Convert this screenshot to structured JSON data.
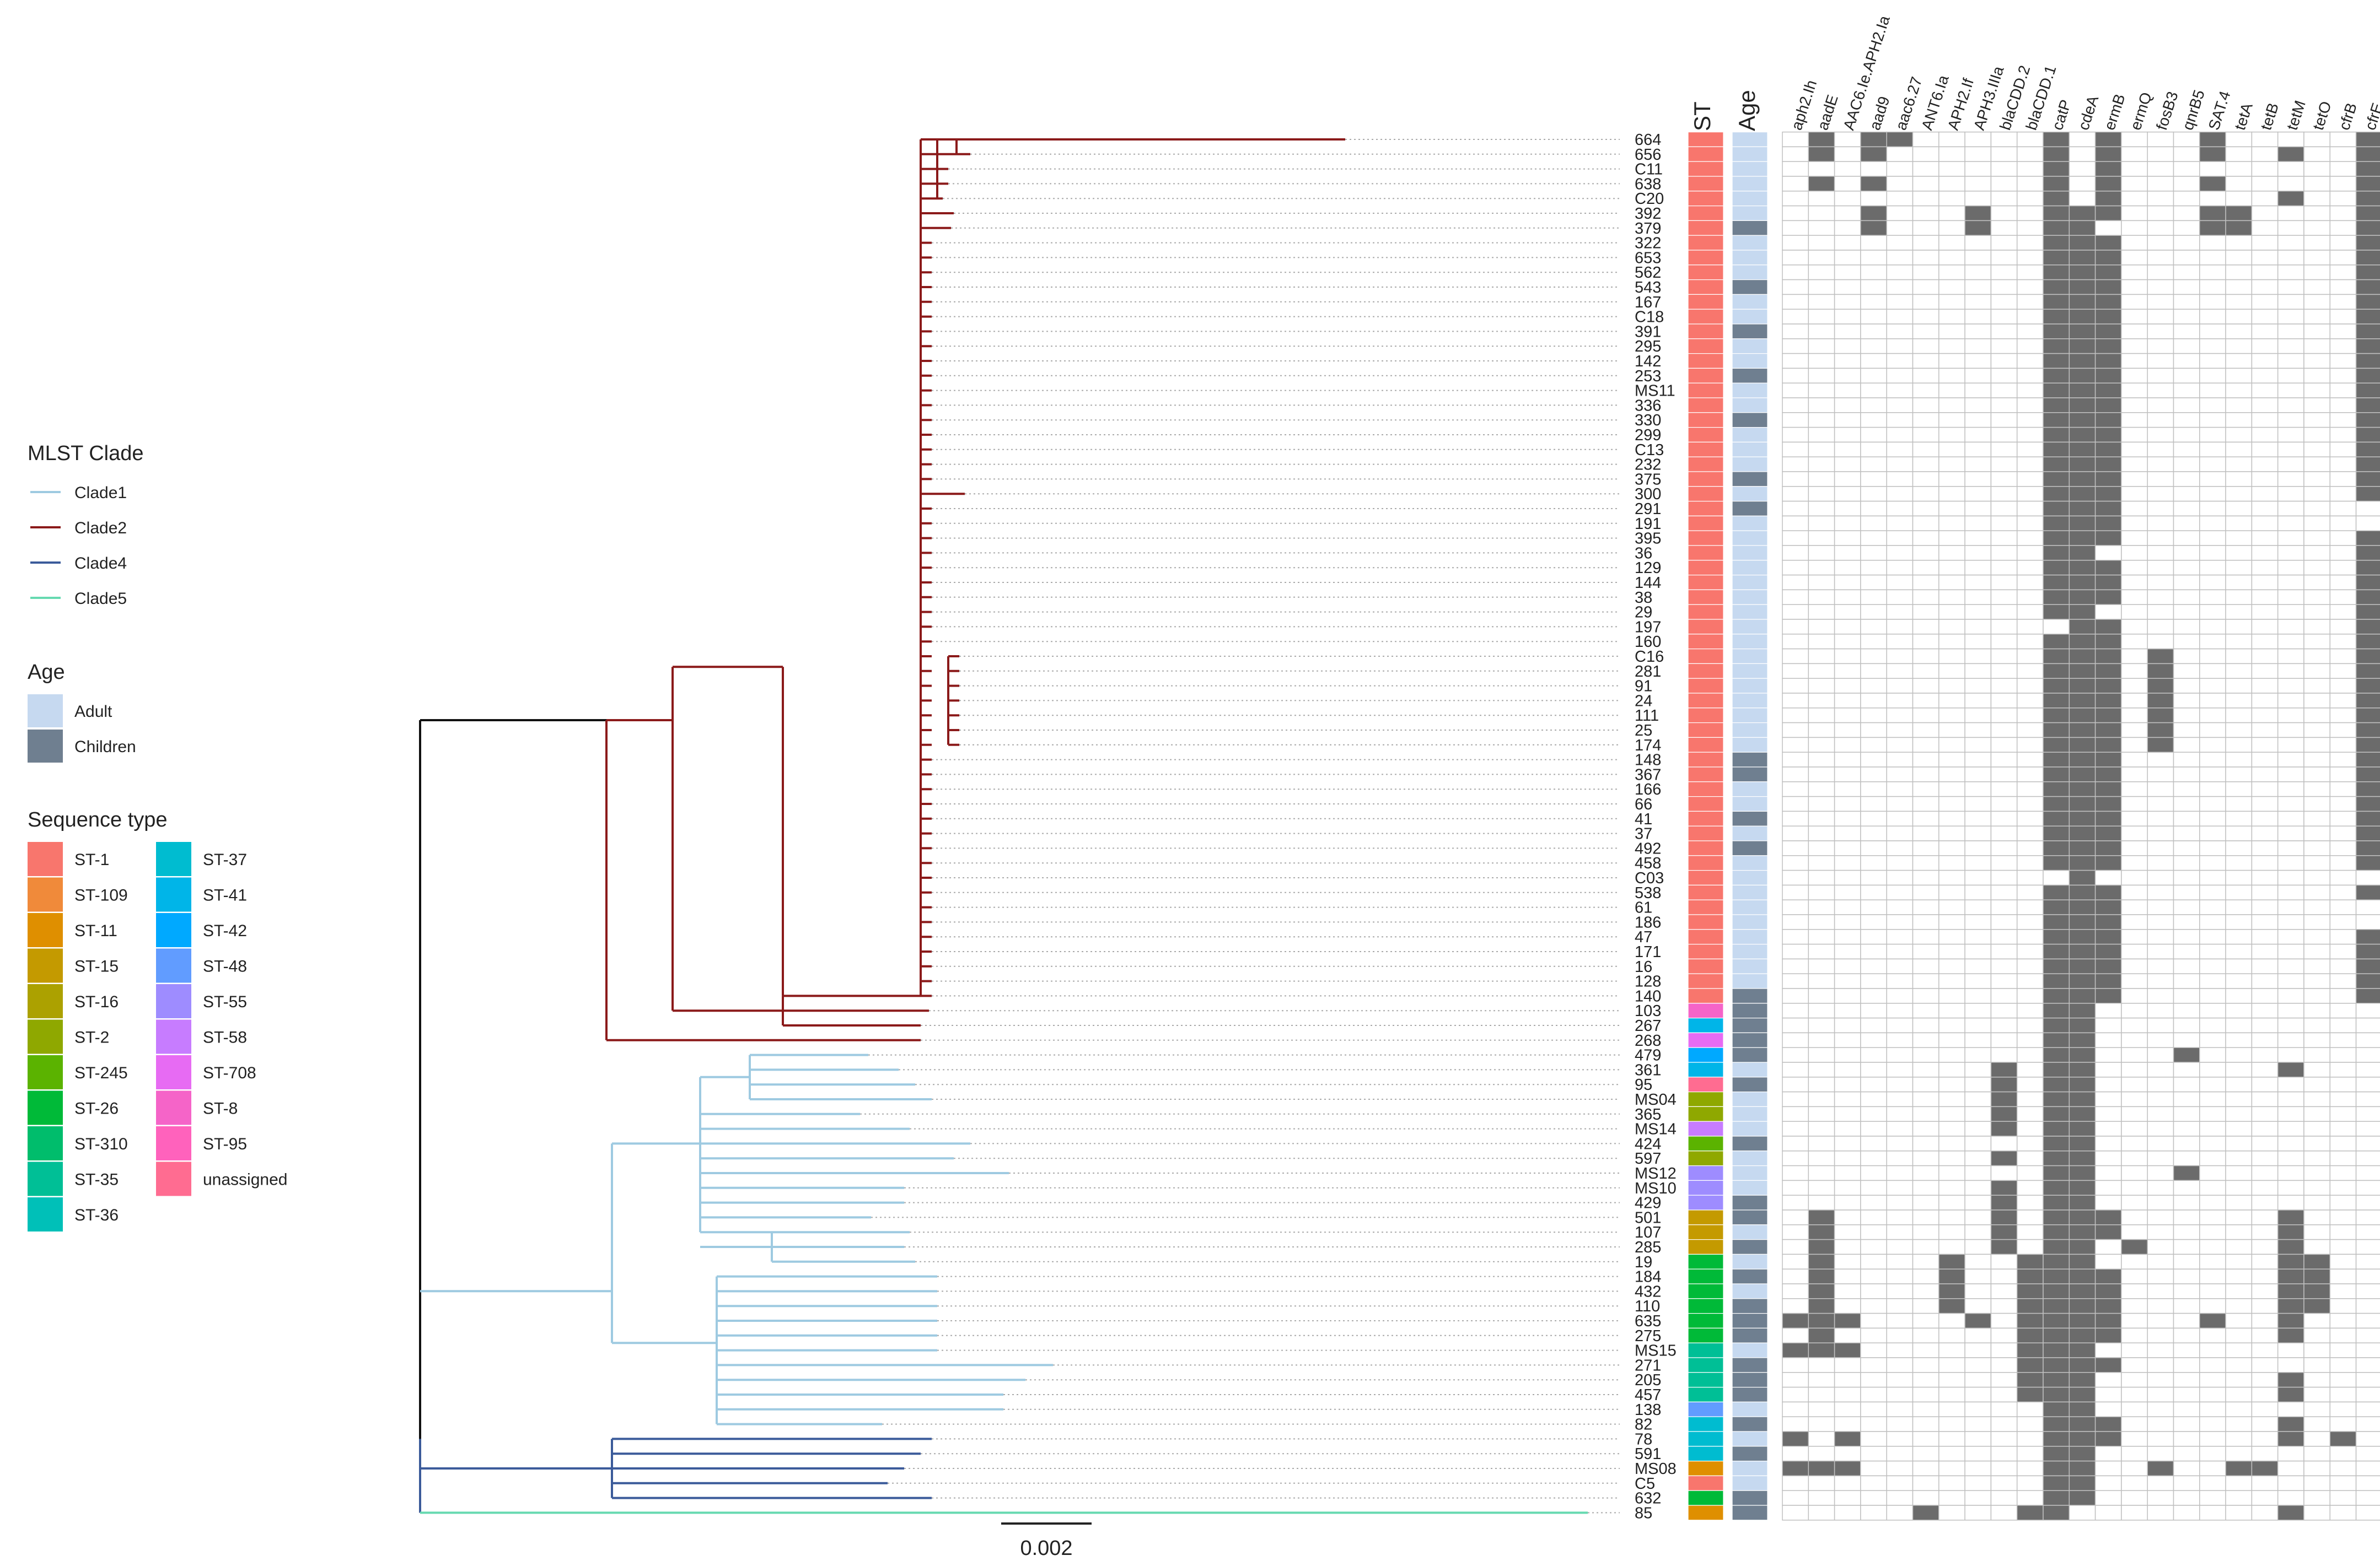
{
  "legend": {
    "clade_title": "MLST Clade",
    "clades": [
      {
        "label": "Clade1",
        "color": "#9ecae1"
      },
      {
        "label": "Clade2",
        "color": "#8b1a1a"
      },
      {
        "label": "Clade4",
        "color": "#3b5b9a"
      },
      {
        "label": "Clade5",
        "color": "#66d9b0"
      }
    ],
    "age_title": "Age",
    "ages": [
      {
        "label": "Adult",
        "color": "#c6d9f0"
      },
      {
        "label": "Children",
        "color": "#6f7f90"
      }
    ],
    "st_title": "Sequence type",
    "sts": [
      {
        "label": "ST-1",
        "color": "#f8766d"
      },
      {
        "label": "ST-109",
        "color": "#f08a3a"
      },
      {
        "label": "ST-11",
        "color": "#df8f00"
      },
      {
        "label": "ST-15",
        "color": "#c49a00"
      },
      {
        "label": "ST-16",
        "color": "#aca100"
      },
      {
        "label": "ST-2",
        "color": "#8fa800"
      },
      {
        "label": "ST-245",
        "color": "#5bb300"
      },
      {
        "label": "ST-26",
        "color": "#00ba38"
      },
      {
        "label": "ST-310",
        "color": "#00bd6c"
      },
      {
        "label": "ST-35",
        "color": "#00bf96"
      },
      {
        "label": "ST-36",
        "color": "#00c0b8"
      },
      {
        "label": "ST-37",
        "color": "#00bcd0"
      },
      {
        "label": "ST-41",
        "color": "#00b5e8"
      },
      {
        "label": "ST-42",
        "color": "#00a9ff"
      },
      {
        "label": "ST-48",
        "color": "#619cff"
      },
      {
        "label": "ST-55",
        "color": "#9e8cff"
      },
      {
        "label": "ST-58",
        "color": "#c77cff"
      },
      {
        "label": "ST-708",
        "color": "#e76bf3"
      },
      {
        "label": "ST-8",
        "color": "#f564c8"
      },
      {
        "label": "ST-95",
        "color": "#ff62bc"
      },
      {
        "label": "unassigned",
        "color": "#ff6c91"
      }
    ]
  },
  "columns": {
    "st": "ST",
    "age": "Age"
  },
  "genes": [
    "aph2.Ih",
    "aadE",
    "AAC6.Ie.APH2.Ia",
    "aad9",
    "aac6.27",
    "ANT6.Ia",
    "APH2.If",
    "APH3.IIIa",
    "blaCDD.2",
    "blaCDD.1",
    "catP",
    "cdeA",
    "ermB",
    "ermQ",
    "fosB3",
    "qnrB5",
    "SAT.4",
    "tetA",
    "tetB",
    "tetM",
    "tetO",
    "cfrB",
    "cfrE"
  ],
  "scale_bar_label": "0.002",
  "colors": {
    "grid": "#c0c0c0",
    "present": "#6b6b6b"
  },
  "tips": [
    {
      "id": "664",
      "st": 0,
      "age": 0,
      "g": [
        1,
        3,
        4,
        10,
        12,
        16,
        22
      ]
    },
    {
      "id": "656",
      "st": 0,
      "age": 0,
      "g": [
        1,
        3,
        10,
        12,
        16,
        19,
        22
      ]
    },
    {
      "id": "C11",
      "st": 0,
      "age": 0,
      "g": [
        10,
        12,
        22
      ]
    },
    {
      "id": "638",
      "st": 0,
      "age": 0,
      "g": [
        1,
        3,
        10,
        12,
        16,
        22
      ]
    },
    {
      "id": "C20",
      "st": 0,
      "age": 0,
      "g": [
        10,
        12,
        19,
        22
      ]
    },
    {
      "id": "392",
      "st": 0,
      "age": 0,
      "g": [
        3,
        7,
        10,
        11,
        12,
        16,
        17,
        22
      ]
    },
    {
      "id": "379",
      "st": 0,
      "age": 1,
      "g": [
        3,
        7,
        10,
        11,
        16,
        17,
        22
      ]
    },
    {
      "id": "322",
      "st": 0,
      "age": 0,
      "g": [
        10,
        11,
        12,
        22
      ]
    },
    {
      "id": "653",
      "st": 0,
      "age": 0,
      "g": [
        10,
        11,
        12,
        22
      ]
    },
    {
      "id": "562",
      "st": 0,
      "age": 0,
      "g": [
        10,
        11,
        12,
        22
      ]
    },
    {
      "id": "543",
      "st": 0,
      "age": 1,
      "g": [
        10,
        11,
        12,
        22
      ]
    },
    {
      "id": "167",
      "st": 0,
      "age": 0,
      "g": [
        10,
        11,
        12,
        22
      ]
    },
    {
      "id": "C18",
      "st": 0,
      "age": 0,
      "g": [
        10,
        11,
        12,
        22
      ]
    },
    {
      "id": "391",
      "st": 0,
      "age": 1,
      "g": [
        10,
        11,
        12,
        22
      ]
    },
    {
      "id": "295",
      "st": 0,
      "age": 0,
      "g": [
        10,
        11,
        12,
        22
      ]
    },
    {
      "id": "142",
      "st": 0,
      "age": 0,
      "g": [
        10,
        11,
        12,
        22
      ]
    },
    {
      "id": "253",
      "st": 0,
      "age": 1,
      "g": [
        10,
        11,
        12,
        22
      ]
    },
    {
      "id": "MS11",
      "st": 0,
      "age": 0,
      "g": [
        10,
        11,
        12,
        22
      ]
    },
    {
      "id": "336",
      "st": 0,
      "age": 0,
      "g": [
        10,
        11,
        12,
        22
      ]
    },
    {
      "id": "330",
      "st": 0,
      "age": 1,
      "g": [
        10,
        11,
        12,
        22
      ]
    },
    {
      "id": "299",
      "st": 0,
      "age": 0,
      "g": [
        10,
        11,
        12,
        22
      ]
    },
    {
      "id": "C13",
      "st": 0,
      "age": 0,
      "g": [
        10,
        11,
        12,
        22
      ]
    },
    {
      "id": "232",
      "st": 0,
      "age": 0,
      "g": [
        10,
        11,
        12,
        22
      ]
    },
    {
      "id": "375",
      "st": 0,
      "age": 1,
      "g": [
        10,
        11,
        12,
        22
      ]
    },
    {
      "id": "300",
      "st": 0,
      "age": 0,
      "g": [
        10,
        11,
        12,
        22
      ]
    },
    {
      "id": "291",
      "st": 0,
      "age": 1,
      "g": [
        10,
        11,
        12
      ]
    },
    {
      "id": "191",
      "st": 0,
      "age": 0,
      "g": [
        10,
        11,
        12
      ]
    },
    {
      "id": "395",
      "st": 0,
      "age": 0,
      "g": [
        10,
        11,
        12,
        22
      ]
    },
    {
      "id": "36",
      "st": 0,
      "age": 0,
      "g": [
        10,
        11,
        22
      ]
    },
    {
      "id": "129",
      "st": 0,
      "age": 0,
      "g": [
        10,
        11,
        12,
        22
      ]
    },
    {
      "id": "144",
      "st": 0,
      "age": 0,
      "g": [
        10,
        11,
        12,
        22
      ]
    },
    {
      "id": "38",
      "st": 0,
      "age": 0,
      "g": [
        10,
        11,
        12,
        22
      ]
    },
    {
      "id": "29",
      "st": 0,
      "age": 0,
      "g": [
        10,
        11,
        22
      ]
    },
    {
      "id": "197",
      "st": 0,
      "age": 0,
      "g": [
        11,
        12,
        22
      ]
    },
    {
      "id": "160",
      "st": 0,
      "age": 0,
      "g": [
        10,
        11,
        12,
        22
      ]
    },
    {
      "id": "C16",
      "st": 0,
      "age": 0,
      "g": [
        10,
        11,
        12,
        14,
        22
      ]
    },
    {
      "id": "281",
      "st": 0,
      "age": 0,
      "g": [
        10,
        11,
        12,
        14,
        22
      ]
    },
    {
      "id": "91",
      "st": 0,
      "age": 0,
      "g": [
        10,
        11,
        12,
        14,
        22
      ]
    },
    {
      "id": "24",
      "st": 0,
      "age": 0,
      "g": [
        10,
        11,
        12,
        14,
        22
      ]
    },
    {
      "id": "111",
      "st": 0,
      "age": 0,
      "g": [
        10,
        11,
        12,
        14,
        22
      ]
    },
    {
      "id": "25",
      "st": 0,
      "age": 0,
      "g": [
        10,
        11,
        12,
        14,
        22
      ]
    },
    {
      "id": "174",
      "st": 0,
      "age": 0,
      "g": [
        10,
        11,
        12,
        14,
        22
      ]
    },
    {
      "id": "148",
      "st": 0,
      "age": 1,
      "g": [
        10,
        11,
        12,
        22
      ]
    },
    {
      "id": "367",
      "st": 0,
      "age": 1,
      "g": [
        10,
        11,
        12,
        22
      ]
    },
    {
      "id": "166",
      "st": 0,
      "age": 0,
      "g": [
        10,
        11,
        12,
        22
      ]
    },
    {
      "id": "66",
      "st": 0,
      "age": 0,
      "g": [
        10,
        11,
        12,
        22
      ]
    },
    {
      "id": "41",
      "st": 0,
      "age": 1,
      "g": [
        10,
        11,
        12,
        22
      ]
    },
    {
      "id": "37",
      "st": 0,
      "age": 0,
      "g": [
        10,
        11,
        12,
        22
      ]
    },
    {
      "id": "492",
      "st": 0,
      "age": 1,
      "g": [
        10,
        11,
        12,
        22
      ]
    },
    {
      "id": "458",
      "st": 0,
      "age": 0,
      "g": [
        10,
        11,
        12,
        22
      ]
    },
    {
      "id": "C03",
      "st": 0,
      "age": 0,
      "g": [
        11
      ]
    },
    {
      "id": "538",
      "st": 0,
      "age": 0,
      "g": [
        10,
        11,
        12,
        22
      ]
    },
    {
      "id": "61",
      "st": 0,
      "age": 0,
      "g": [
        10,
        11,
        12
      ]
    },
    {
      "id": "186",
      "st": 0,
      "age": 0,
      "g": [
        10,
        11,
        12
      ]
    },
    {
      "id": "47",
      "st": 0,
      "age": 0,
      "g": [
        10,
        11,
        12,
        22
      ]
    },
    {
      "id": "171",
      "st": 0,
      "age": 0,
      "g": [
        10,
        11,
        12,
        22
      ]
    },
    {
      "id": "16",
      "st": 0,
      "age": 0,
      "g": [
        10,
        11,
        12,
        22
      ]
    },
    {
      "id": "128",
      "st": 0,
      "age": 0,
      "g": [
        10,
        11,
        12,
        22
      ]
    },
    {
      "id": "140",
      "st": 0,
      "age": 1,
      "g": [
        10,
        11,
        12,
        22
      ]
    },
    {
      "id": "103",
      "st": 18,
      "age": 1,
      "g": [
        10,
        11
      ]
    },
    {
      "id": "267",
      "st": 12,
      "age": 1,
      "g": [
        10,
        11
      ]
    },
    {
      "id": "268",
      "st": 17,
      "age": 1,
      "g": [
        10,
        11
      ]
    },
    {
      "id": "479",
      "st": 13,
      "age": 1,
      "g": [
        10,
        11,
        15
      ]
    },
    {
      "id": "361",
      "st": 12,
      "age": 0,
      "g": [
        8,
        10,
        11,
        19
      ]
    },
    {
      "id": "95",
      "st": 20,
      "age": 1,
      "g": [
        8,
        10,
        11
      ]
    },
    {
      "id": "MS04",
      "st": 5,
      "age": 0,
      "g": [
        8,
        10,
        11
      ]
    },
    {
      "id": "365",
      "st": 5,
      "age": 0,
      "g": [
        8,
        10,
        11
      ]
    },
    {
      "id": "MS14",
      "st": 16,
      "age": 0,
      "g": [
        8,
        10,
        11
      ]
    },
    {
      "id": "424",
      "st": 6,
      "age": 1,
      "g": [
        10,
        11
      ]
    },
    {
      "id": "597",
      "st": 5,
      "age": 0,
      "g": [
        8,
        10,
        11
      ]
    },
    {
      "id": "MS12",
      "st": 15,
      "age": 0,
      "g": [
        10,
        11,
        15
      ]
    },
    {
      "id": "MS10",
      "st": 15,
      "age": 0,
      "g": [
        8,
        10,
        11
      ]
    },
    {
      "id": "429",
      "st": 15,
      "age": 1,
      "g": [
        8,
        10,
        11
      ]
    },
    {
      "id": "501",
      "st": 3,
      "age": 1,
      "g": [
        1,
        8,
        10,
        11,
        12,
        19
      ]
    },
    {
      "id": "107",
      "st": 3,
      "age": 0,
      "g": [
        1,
        8,
        10,
        11,
        12,
        19
      ]
    },
    {
      "id": "285",
      "st": 3,
      "age": 1,
      "g": [
        1,
        8,
        10,
        11,
        13,
        19
      ]
    },
    {
      "id": "19",
      "st": 7,
      "age": 0,
      "g": [
        1,
        6,
        9,
        10,
        11,
        19,
        20
      ]
    },
    {
      "id": "184",
      "st": 7,
      "age": 1,
      "g": [
        1,
        6,
        9,
        10,
        11,
        12,
        19,
        20
      ]
    },
    {
      "id": "432",
      "st": 7,
      "age": 0,
      "g": [
        1,
        6,
        9,
        10,
        11,
        12,
        19,
        20
      ]
    },
    {
      "id": "110",
      "st": 7,
      "age": 1,
      "g": [
        1,
        6,
        9,
        10,
        11,
        12,
        19,
        20
      ]
    },
    {
      "id": "635",
      "st": 7,
      "age": 1,
      "g": [
        0,
        1,
        2,
        7,
        9,
        10,
        11,
        12,
        16,
        19
      ]
    },
    {
      "id": "275",
      "st": 7,
      "age": 1,
      "g": [
        1,
        9,
        10,
        11,
        12,
        19
      ]
    },
    {
      "id": "MS15",
      "st": 9,
      "age": 0,
      "g": [
        0,
        1,
        2,
        9,
        10,
        11
      ]
    },
    {
      "id": "271",
      "st": 9,
      "age": 1,
      "g": [
        9,
        10,
        11,
        12
      ]
    },
    {
      "id": "205",
      "st": 9,
      "age": 1,
      "g": [
        9,
        10,
        11,
        19
      ]
    },
    {
      "id": "457",
      "st": 9,
      "age": 1,
      "g": [
        9,
        10,
        11,
        19
      ]
    },
    {
      "id": "138",
      "st": 14,
      "age": 0,
      "g": [
        10,
        11
      ]
    },
    {
      "id": "82",
      "st": 11,
      "age": 1,
      "g": [
        10,
        11,
        12,
        19
      ]
    },
    {
      "id": "78",
      "st": 11,
      "age": 0,
      "g": [
        0,
        2,
        10,
        11,
        12,
        19,
        21
      ]
    },
    {
      "id": "591",
      "st": 11,
      "age": 1,
      "g": [
        10,
        11
      ]
    },
    {
      "id": "MS08",
      "st": 2,
      "age": 0,
      "g": [
        0,
        1,
        2,
        10,
        11,
        14,
        17,
        18
      ]
    },
    {
      "id": "C5",
      "st": 0,
      "age": 0,
      "g": [
        10,
        11
      ]
    },
    {
      "id": "632",
      "st": 7,
      "age": 1,
      "g": [
        10,
        11
      ]
    },
    {
      "id": "85",
      "st": 2,
      "age": 1,
      "g": [
        5,
        9,
        10,
        19
      ]
    }
  ]
}
